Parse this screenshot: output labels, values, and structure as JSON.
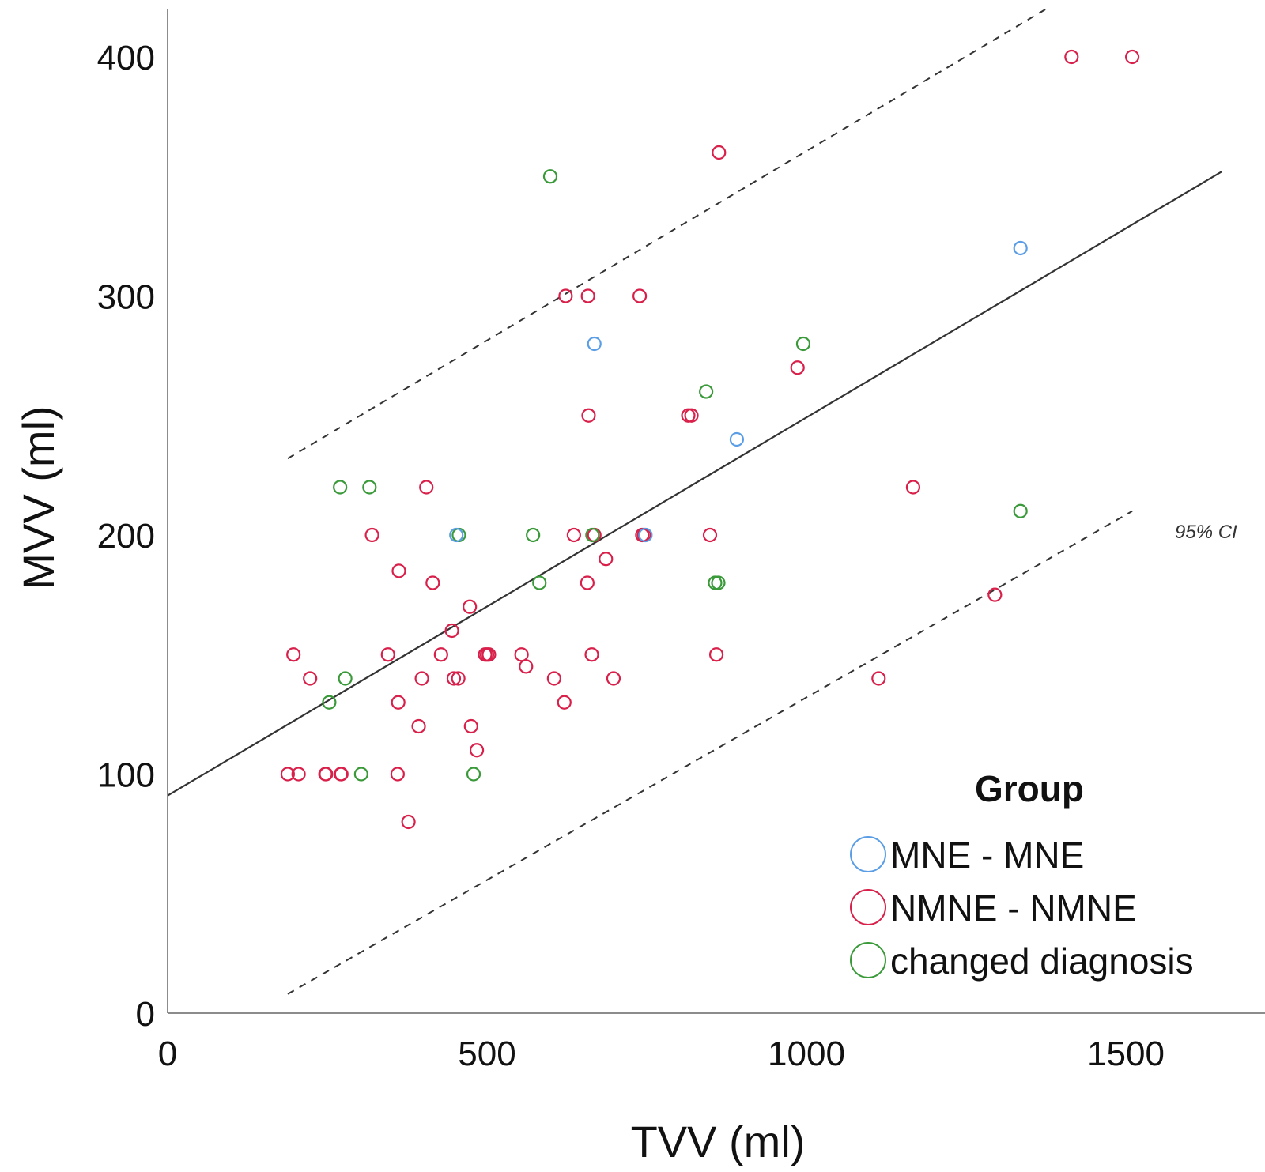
{
  "chart_data": {
    "type": "scatter",
    "xlabel": "TVV (ml)",
    "ylabel": "MVV (ml)",
    "xlim": [
      0,
      1650
    ],
    "ylim": [
      0,
      420
    ],
    "x_ticks": [
      "0",
      "500",
      "1000",
      "1500"
    ],
    "y_ticks": [
      "0",
      "100",
      "200",
      "300",
      "400"
    ],
    "grid": false,
    "legend": {
      "title": "Group",
      "placement": "bottom-right",
      "entries": [
        {
          "key": "mne",
          "label": "MNE - MNE",
          "color": "#5b9ee6"
        },
        {
          "key": "nmne",
          "label": "NMNE - NMNE",
          "color": "#d8204a"
        },
        {
          "key": "changed",
          "label": "changed diagnosis",
          "color": "#3a9a3a"
        }
      ]
    },
    "series": [
      {
        "name": "MNE - MNE",
        "color": "#5b9ee6",
        "points": [
          [
            452,
            200
          ],
          [
            668,
            280
          ],
          [
            748,
            200
          ],
          [
            891,
            240
          ],
          [
            1335,
            320
          ]
        ]
      },
      {
        "name": "NMNE - NMNE",
        "color": "#d8204a",
        "points": [
          [
            188,
            100
          ],
          [
            205,
            100
          ],
          [
            247,
            100
          ],
          [
            248,
            100
          ],
          [
            271,
            100
          ],
          [
            272,
            100
          ],
          [
            360,
            100
          ],
          [
            377,
            80
          ],
          [
            393,
            120
          ],
          [
            475,
            120
          ],
          [
            484,
            110
          ],
          [
            223,
            140
          ],
          [
            398,
            140
          ],
          [
            448,
            140
          ],
          [
            455,
            140
          ],
          [
            605,
            140
          ],
          [
            698,
            140
          ],
          [
            1113,
            140
          ],
          [
            345,
            150
          ],
          [
            428,
            150
          ],
          [
            497,
            150
          ],
          [
            500,
            150
          ],
          [
            503,
            150
          ],
          [
            554,
            150
          ],
          [
            664,
            150
          ],
          [
            859,
            150
          ],
          [
            361,
            130
          ],
          [
            621,
            130
          ],
          [
            197,
            150
          ],
          [
            561,
            145
          ],
          [
            445,
            160
          ],
          [
            473,
            170
          ],
          [
            1295,
            175
          ],
          [
            362,
            185
          ],
          [
            415,
            180
          ],
          [
            657,
            180
          ],
          [
            686,
            190
          ],
          [
            320,
            200
          ],
          [
            636,
            200
          ],
          [
            668,
            200
          ],
          [
            743,
            200
          ],
          [
            746,
            200
          ],
          [
            849,
            200
          ],
          [
            405,
            220
          ],
          [
            1167,
            220
          ],
          [
            659,
            250
          ],
          [
            815,
            250
          ],
          [
            820,
            250
          ],
          [
            986,
            270
          ],
          [
            623,
            300
          ],
          [
            658,
            300
          ],
          [
            739,
            300
          ],
          [
            863,
            360
          ],
          [
            1415,
            400
          ],
          [
            1510,
            400
          ]
        ]
      },
      {
        "name": "changed diagnosis",
        "color": "#3a9a3a",
        "points": [
          [
            253,
            130
          ],
          [
            278,
            140
          ],
          [
            303,
            100
          ],
          [
            479,
            100
          ],
          [
            270,
            220
          ],
          [
            316,
            220
          ],
          [
            456,
            200
          ],
          [
            572,
            200
          ],
          [
            665,
            200
          ],
          [
            582,
            180
          ],
          [
            857,
            180
          ],
          [
            862,
            180
          ],
          [
            599,
            350
          ],
          [
            843,
            260
          ],
          [
            995,
            280
          ],
          [
            1335,
            210
          ]
        ]
      }
    ],
    "fit_line": {
      "x": [
        0,
        1650
      ],
      "y": [
        91,
        352
      ]
    },
    "ci_upper": {
      "x": [
        188,
        1375
      ],
      "y": [
        232,
        420
      ]
    },
    "ci_lower": {
      "x": [
        188,
        1510
      ],
      "y": [
        8,
        210
      ]
    },
    "ci_label": "95% CI"
  }
}
